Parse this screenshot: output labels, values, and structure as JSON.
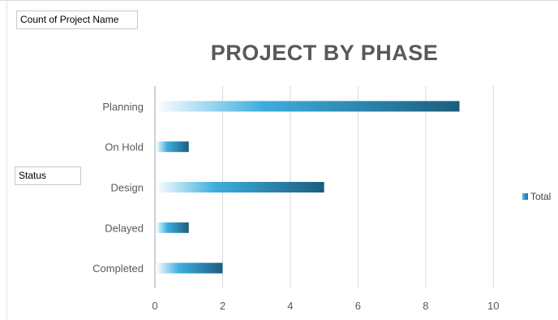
{
  "pivot": {
    "values_button": "Count of Project Name",
    "rows_button": "Status"
  },
  "chart_data": {
    "type": "bar",
    "orientation": "horizontal",
    "title": "PROJECT BY PHASE",
    "categories": [
      "Planning",
      "On Hold",
      "Design",
      "Delayed",
      "Completed"
    ],
    "series": [
      {
        "name": "Total",
        "values": [
          9,
          1,
          5,
          1,
          2
        ]
      }
    ],
    "xlim": [
      0,
      11
    ],
    "xticks": [
      0,
      2,
      4,
      6,
      8,
      10
    ],
    "grid": true,
    "legend": "right",
    "colors": {
      "bar_start": "#ffffff",
      "bar_mid": "#3daee0",
      "bar_end": "#1b5e7d"
    }
  }
}
